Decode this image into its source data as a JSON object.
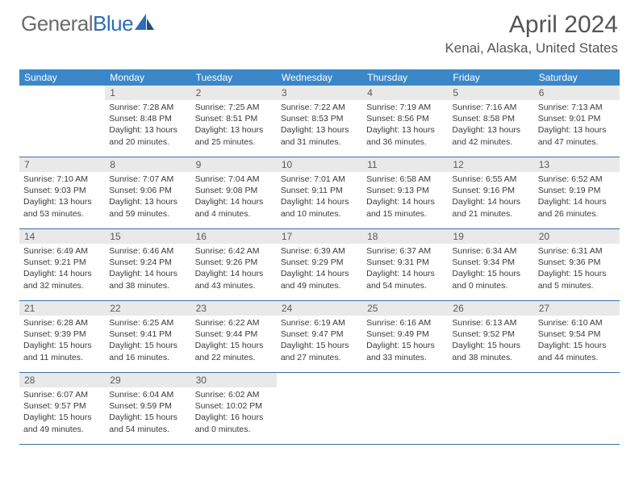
{
  "logo": {
    "text_general": "General",
    "text_blue": "Blue"
  },
  "title": {
    "month": "April 2024",
    "location": "Kenai, Alaska, United States"
  },
  "colors": {
    "header_bg": "#3b87c8",
    "header_text": "#ffffff",
    "row_border": "#3b6fa0",
    "daynum_bg": "#e9e9e9",
    "body_text": "#3a3a3a",
    "title_text": "#555555",
    "logo_gray": "#6b6b6b",
    "logo_blue": "#2d6fb5"
  },
  "day_names": [
    "Sunday",
    "Monday",
    "Tuesday",
    "Wednesday",
    "Thursday",
    "Friday",
    "Saturday"
  ],
  "weeks": [
    [
      {
        "n": "",
        "lines": []
      },
      {
        "n": "1",
        "lines": [
          "Sunrise: 7:28 AM",
          "Sunset: 8:48 PM",
          "Daylight: 13 hours",
          "and 20 minutes."
        ]
      },
      {
        "n": "2",
        "lines": [
          "Sunrise: 7:25 AM",
          "Sunset: 8:51 PM",
          "Daylight: 13 hours",
          "and 25 minutes."
        ]
      },
      {
        "n": "3",
        "lines": [
          "Sunrise: 7:22 AM",
          "Sunset: 8:53 PM",
          "Daylight: 13 hours",
          "and 31 minutes."
        ]
      },
      {
        "n": "4",
        "lines": [
          "Sunrise: 7:19 AM",
          "Sunset: 8:56 PM",
          "Daylight: 13 hours",
          "and 36 minutes."
        ]
      },
      {
        "n": "5",
        "lines": [
          "Sunrise: 7:16 AM",
          "Sunset: 8:58 PM",
          "Daylight: 13 hours",
          "and 42 minutes."
        ]
      },
      {
        "n": "6",
        "lines": [
          "Sunrise: 7:13 AM",
          "Sunset: 9:01 PM",
          "Daylight: 13 hours",
          "and 47 minutes."
        ]
      }
    ],
    [
      {
        "n": "7",
        "lines": [
          "Sunrise: 7:10 AM",
          "Sunset: 9:03 PM",
          "Daylight: 13 hours",
          "and 53 minutes."
        ]
      },
      {
        "n": "8",
        "lines": [
          "Sunrise: 7:07 AM",
          "Sunset: 9:06 PM",
          "Daylight: 13 hours",
          "and 59 minutes."
        ]
      },
      {
        "n": "9",
        "lines": [
          "Sunrise: 7:04 AM",
          "Sunset: 9:08 PM",
          "Daylight: 14 hours",
          "and 4 minutes."
        ]
      },
      {
        "n": "10",
        "lines": [
          "Sunrise: 7:01 AM",
          "Sunset: 9:11 PM",
          "Daylight: 14 hours",
          "and 10 minutes."
        ]
      },
      {
        "n": "11",
        "lines": [
          "Sunrise: 6:58 AM",
          "Sunset: 9:13 PM",
          "Daylight: 14 hours",
          "and 15 minutes."
        ]
      },
      {
        "n": "12",
        "lines": [
          "Sunrise: 6:55 AM",
          "Sunset: 9:16 PM",
          "Daylight: 14 hours",
          "and 21 minutes."
        ]
      },
      {
        "n": "13",
        "lines": [
          "Sunrise: 6:52 AM",
          "Sunset: 9:19 PM",
          "Daylight: 14 hours",
          "and 26 minutes."
        ]
      }
    ],
    [
      {
        "n": "14",
        "lines": [
          "Sunrise: 6:49 AM",
          "Sunset: 9:21 PM",
          "Daylight: 14 hours",
          "and 32 minutes."
        ]
      },
      {
        "n": "15",
        "lines": [
          "Sunrise: 6:46 AM",
          "Sunset: 9:24 PM",
          "Daylight: 14 hours",
          "and 38 minutes."
        ]
      },
      {
        "n": "16",
        "lines": [
          "Sunrise: 6:42 AM",
          "Sunset: 9:26 PM",
          "Daylight: 14 hours",
          "and 43 minutes."
        ]
      },
      {
        "n": "17",
        "lines": [
          "Sunrise: 6:39 AM",
          "Sunset: 9:29 PM",
          "Daylight: 14 hours",
          "and 49 minutes."
        ]
      },
      {
        "n": "18",
        "lines": [
          "Sunrise: 6:37 AM",
          "Sunset: 9:31 PM",
          "Daylight: 14 hours",
          "and 54 minutes."
        ]
      },
      {
        "n": "19",
        "lines": [
          "Sunrise: 6:34 AM",
          "Sunset: 9:34 PM",
          "Daylight: 15 hours",
          "and 0 minutes."
        ]
      },
      {
        "n": "20",
        "lines": [
          "Sunrise: 6:31 AM",
          "Sunset: 9:36 PM",
          "Daylight: 15 hours",
          "and 5 minutes."
        ]
      }
    ],
    [
      {
        "n": "21",
        "lines": [
          "Sunrise: 6:28 AM",
          "Sunset: 9:39 PM",
          "Daylight: 15 hours",
          "and 11 minutes."
        ]
      },
      {
        "n": "22",
        "lines": [
          "Sunrise: 6:25 AM",
          "Sunset: 9:41 PM",
          "Daylight: 15 hours",
          "and 16 minutes."
        ]
      },
      {
        "n": "23",
        "lines": [
          "Sunrise: 6:22 AM",
          "Sunset: 9:44 PM",
          "Daylight: 15 hours",
          "and 22 minutes."
        ]
      },
      {
        "n": "24",
        "lines": [
          "Sunrise: 6:19 AM",
          "Sunset: 9:47 PM",
          "Daylight: 15 hours",
          "and 27 minutes."
        ]
      },
      {
        "n": "25",
        "lines": [
          "Sunrise: 6:16 AM",
          "Sunset: 9:49 PM",
          "Daylight: 15 hours",
          "and 33 minutes."
        ]
      },
      {
        "n": "26",
        "lines": [
          "Sunrise: 6:13 AM",
          "Sunset: 9:52 PM",
          "Daylight: 15 hours",
          "and 38 minutes."
        ]
      },
      {
        "n": "27",
        "lines": [
          "Sunrise: 6:10 AM",
          "Sunset: 9:54 PM",
          "Daylight: 15 hours",
          "and 44 minutes."
        ]
      }
    ],
    [
      {
        "n": "28",
        "lines": [
          "Sunrise: 6:07 AM",
          "Sunset: 9:57 PM",
          "Daylight: 15 hours",
          "and 49 minutes."
        ]
      },
      {
        "n": "29",
        "lines": [
          "Sunrise: 6:04 AM",
          "Sunset: 9:59 PM",
          "Daylight: 15 hours",
          "and 54 minutes."
        ]
      },
      {
        "n": "30",
        "lines": [
          "Sunrise: 6:02 AM",
          "Sunset: 10:02 PM",
          "Daylight: 16 hours",
          "and 0 minutes."
        ]
      },
      {
        "n": "",
        "lines": []
      },
      {
        "n": "",
        "lines": []
      },
      {
        "n": "",
        "lines": []
      },
      {
        "n": "",
        "lines": []
      }
    ]
  ]
}
